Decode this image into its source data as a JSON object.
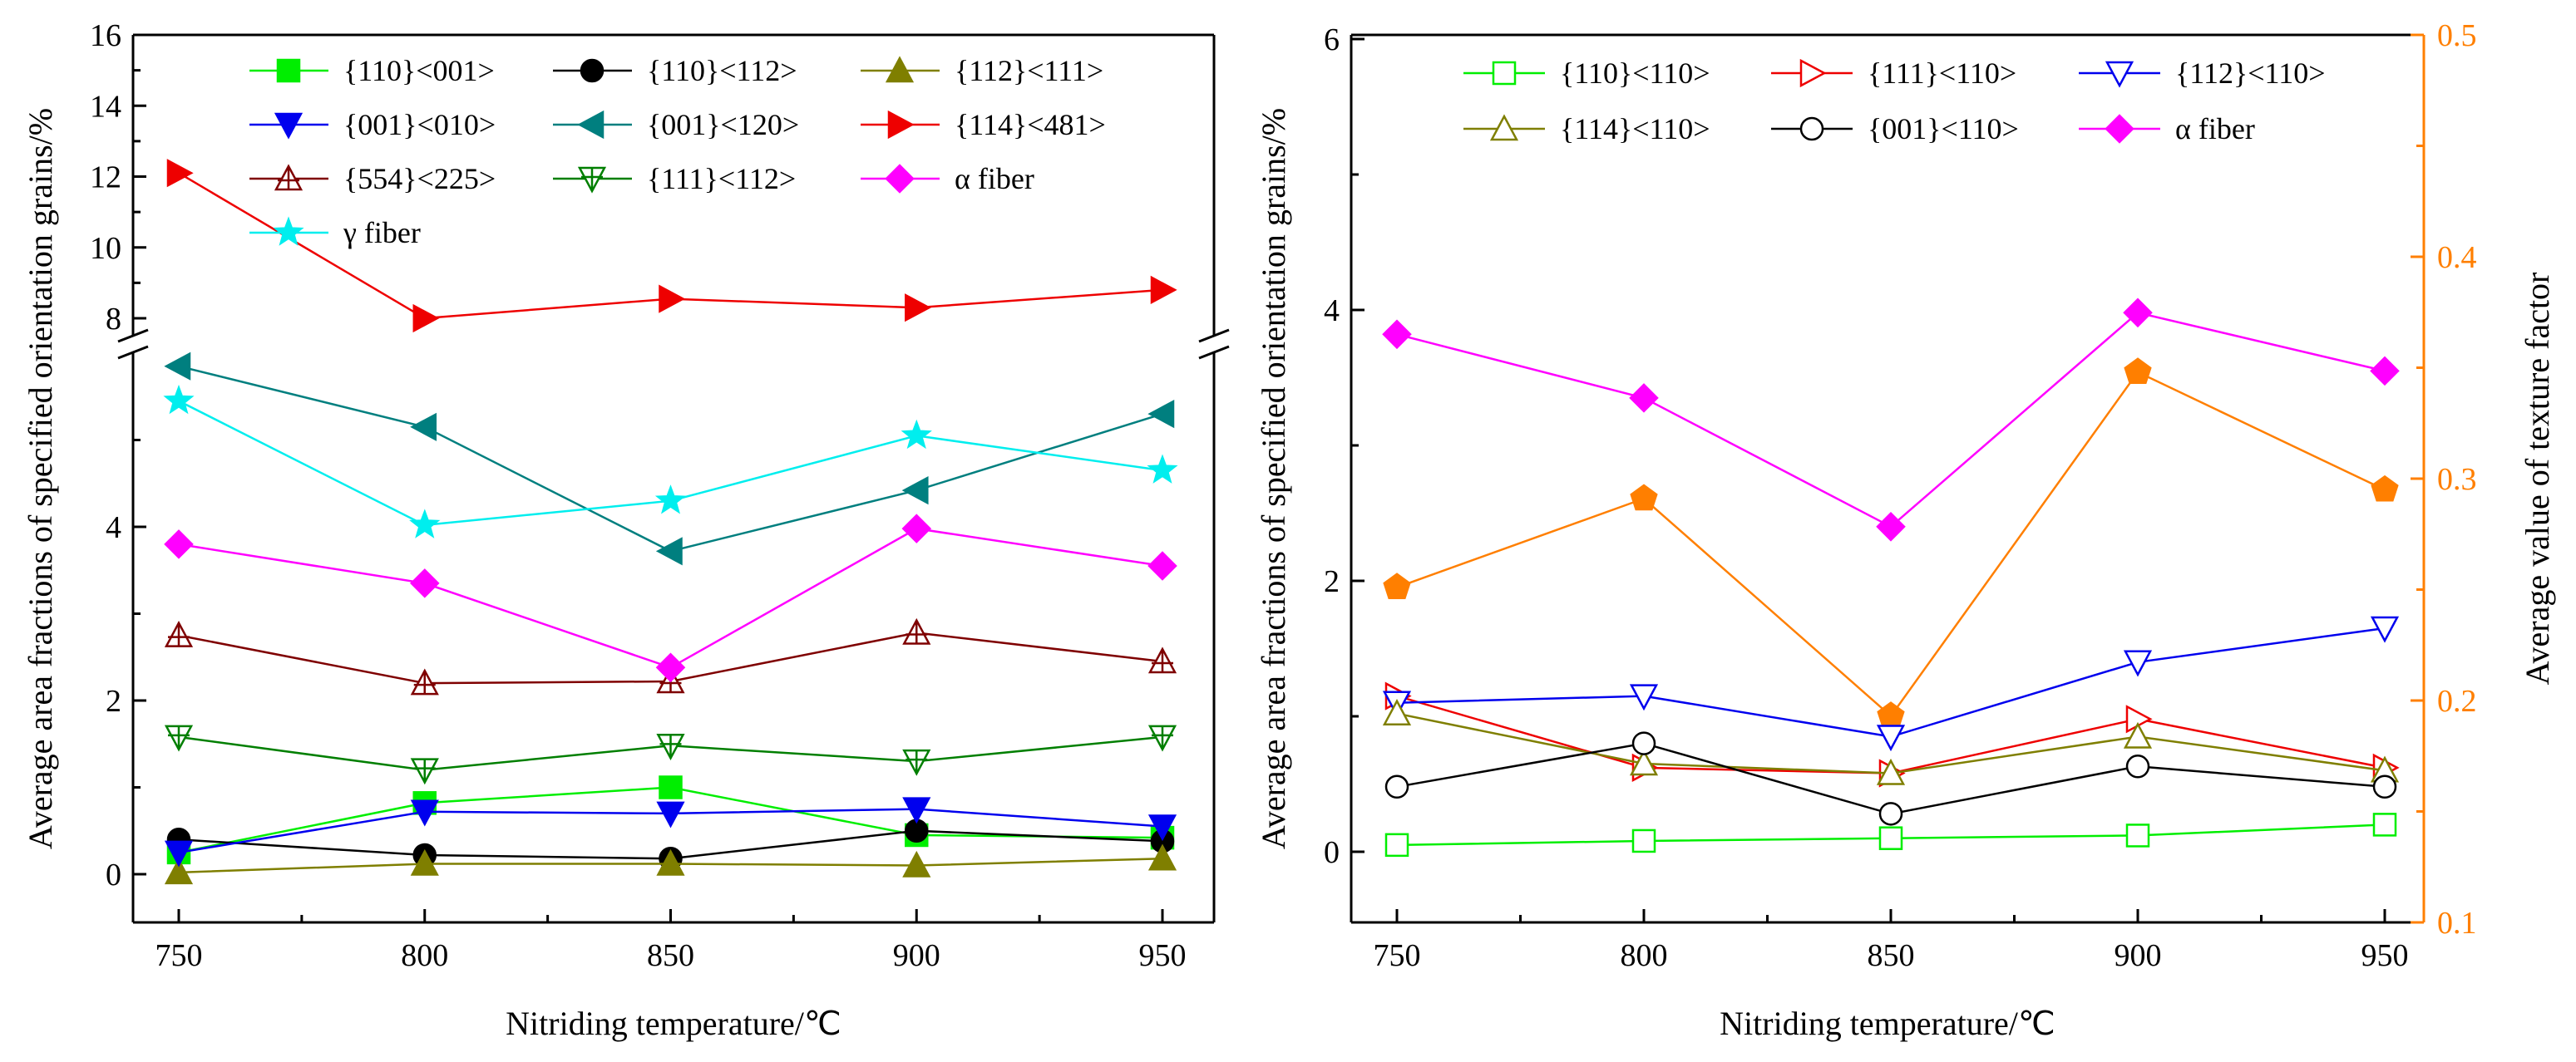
{
  "chart_data": [
    {
      "type": "line",
      "panel": "left",
      "xlabel": "Nitriding temperature/℃",
      "ylabel": "Average area fractions of specified orientation grains/%",
      "x": [
        750,
        800,
        850,
        900,
        950
      ],
      "xticks": [
        "750",
        "800",
        "850",
        "900",
        "950"
      ],
      "ylim_lower": [
        -0.5,
        6
      ],
      "ylim_upper": [
        7,
        16
      ],
      "yticks_lower": [
        "0",
        "2",
        "4"
      ],
      "yticks_upper": [
        "8",
        "10",
        "12",
        "14",
        "16"
      ],
      "axis_break": "between 6 and 7 on y",
      "legend_position": "top",
      "series": [
        {
          "name": "{110}<001>",
          "color": "#00ee00",
          "marker": "square-filled",
          "values": [
            0.25,
            0.82,
            1.0,
            0.45,
            0.42
          ]
        },
        {
          "name": "{110}<112>",
          "color": "#000000",
          "marker": "circle-filled",
          "values": [
            0.4,
            0.22,
            0.18,
            0.5,
            0.38
          ]
        },
        {
          "name": "{112}<111>",
          "color": "#7f7f00",
          "marker": "triangle-up-filled",
          "values": [
            0.02,
            0.12,
            0.12,
            0.1,
            0.18
          ]
        },
        {
          "name": "{001}<010>",
          "color": "#0000ee",
          "marker": "triangle-down-filled",
          "values": [
            0.25,
            0.72,
            0.7,
            0.75,
            0.55
          ]
        },
        {
          "name": "{001}<120>",
          "color": "#007f7f",
          "marker": "triangle-left-filled",
          "values": [
            5.85,
            5.15,
            3.72,
            4.42,
            5.3
          ]
        },
        {
          "name": "{114}<481>",
          "color": "#ee0000",
          "marker": "triangle-right-filled",
          "values": [
            12.1,
            8.0,
            8.55,
            8.3,
            8.8
          ]
        },
        {
          "name": "{554}<225>",
          "color": "#7f0000",
          "marker": "triangle-up-cross-open",
          "values": [
            2.75,
            2.2,
            2.22,
            2.78,
            2.45
          ]
        },
        {
          "name": "{111}<112>",
          "color": "#007f00",
          "marker": "triangle-down-cross-open",
          "values": [
            1.58,
            1.2,
            1.48,
            1.3,
            1.58
          ]
        },
        {
          "name": "α fiber",
          "color": "#ff00ff",
          "marker": "diamond-filled",
          "values": [
            3.8,
            3.35,
            2.38,
            3.98,
            3.55
          ]
        },
        {
          "name": "γ fiber",
          "color": "#00eeee",
          "marker": "star-filled",
          "values": [
            5.45,
            4.02,
            4.3,
            5.05,
            4.65
          ]
        }
      ]
    },
    {
      "type": "line",
      "panel": "right",
      "xlabel": "Nitriding temperature/℃",
      "ylabel": "Average area fractions of specified orientation grains/%",
      "y2label": "Average value of texture factor",
      "x": [
        750,
        800,
        850,
        900,
        950
      ],
      "xticks": [
        "750",
        "800",
        "850",
        "900",
        "950"
      ],
      "ylim": [
        -0.5,
        6
      ],
      "y2lim": [
        0.1,
        0.5
      ],
      "yticks": [
        "0",
        "2",
        "4",
        "6"
      ],
      "y2ticks": [
        "0.1",
        "0.2",
        "0.3",
        "0.4",
        "0.5"
      ],
      "legend_position": "top",
      "series": [
        {
          "name": "{110}<110>",
          "color": "#00ee00",
          "marker": "square-open",
          "values": [
            0.05,
            0.08,
            0.1,
            0.12,
            0.2
          ]
        },
        {
          "name": "{111}<110>",
          "color": "#ee0000",
          "marker": "triangle-right-open",
          "values": [
            1.15,
            0.62,
            0.58,
            0.98,
            0.62
          ]
        },
        {
          "name": "{112}<110>",
          "color": "#0000ee",
          "marker": "triangle-down-open",
          "values": [
            1.1,
            1.15,
            0.85,
            1.4,
            1.65
          ]
        },
        {
          "name": "{114}<110>",
          "color": "#7f7f00",
          "marker": "triangle-up-open",
          "values": [
            1.02,
            0.65,
            0.58,
            0.85,
            0.6
          ]
        },
        {
          "name": "{001}<110>",
          "color": "#000000",
          "marker": "circle-open",
          "values": [
            0.48,
            0.8,
            0.28,
            0.63,
            0.48
          ]
        },
        {
          "name": "α fiber",
          "color": "#ff00ff",
          "marker": "diamond-filled",
          "values": [
            3.82,
            3.35,
            2.4,
            3.98,
            3.55
          ]
        }
      ],
      "series_y2": [
        {
          "name": "",
          "color": "#ff7f00",
          "marker": "pentagon-filled",
          "values": [
            0.251,
            0.291,
            0.193,
            0.348,
            0.295
          ]
        }
      ]
    }
  ]
}
